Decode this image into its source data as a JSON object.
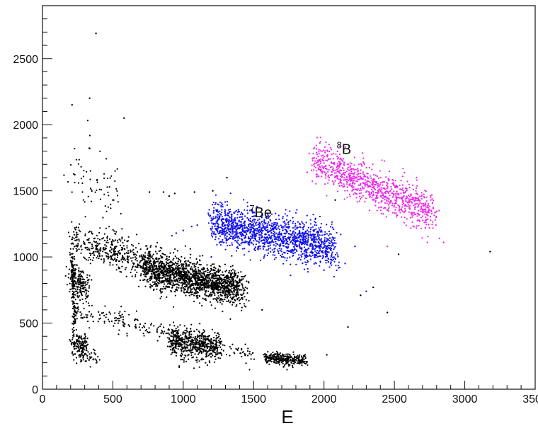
{
  "chart_data": {
    "type": "scatter",
    "title": "",
    "xlabel": "E",
    "ylabel": "",
    "xlim": [
      0,
      3500
    ],
    "ylim": [
      0,
      2900
    ],
    "x_ticks": [
      "0",
      "500",
      "1000",
      "1500",
      "2000",
      "2500",
      "3000",
      "3500"
    ],
    "y_ticks": [
      "0",
      "500",
      "1000",
      "1500",
      "2000",
      "2500"
    ],
    "x_tick_values": [
      0,
      500,
      1000,
      1500,
      2000,
      2500,
      3000,
      3500
    ],
    "y_tick_values": [
      0,
      500,
      1000,
      1500,
      2000,
      2500
    ],
    "grid": false,
    "annotations": [
      {
        "mass": "7",
        "element": "Be",
        "x": 1470,
        "y": 1300
      },
      {
        "mass": "8",
        "element": "B",
        "x": 2090,
        "y": 1780
      }
    ],
    "series": [
      {
        "color": "#000000",
        "clusters": [
          {
            "x0": 210,
            "y0": 1140,
            "x1": 1450,
            "y1": 740,
            "perp": 30,
            "n": 900
          },
          {
            "x0": 700,
            "y0": 900,
            "x1": 1400,
            "y1": 760,
            "perp": 28,
            "n": 1200
          },
          {
            "x0": 220,
            "y0": 600,
            "x1": 1500,
            "y1": 250,
            "perp": 18,
            "n": 260
          },
          {
            "x0": 900,
            "y0": 360,
            "x1": 1260,
            "y1": 320,
            "perp": 25,
            "n": 520
          },
          {
            "x0": 1580,
            "y0": 240,
            "x1": 1880,
            "y1": 215,
            "perp": 10,
            "n": 300
          },
          {
            "x0": 210,
            "y0": 350,
            "x1": 320,
            "y1": 330,
            "perp": 22,
            "n": 140
          },
          {
            "x0": 200,
            "y0": 850,
            "x1": 320,
            "y1": 760,
            "perp": 30,
            "n": 190
          },
          {
            "x0": 210,
            "y0": 1000,
            "x1": 230,
            "y1": 450,
            "perp": 10,
            "n": 120
          },
          {
            "x0": 210,
            "y0": 1640,
            "x1": 520,
            "y1": 1480,
            "perp": 60,
            "n": 70
          },
          {
            "x0": 250,
            "y0": 260,
            "x1": 400,
            "y1": 240,
            "perp": 15,
            "n": 40
          }
        ],
        "points": [
          [
            380,
            2690
          ],
          [
            335,
            2200
          ],
          [
            210,
            2150
          ],
          [
            580,
            2050
          ],
          [
            760,
            1490
          ],
          [
            860,
            1490
          ],
          [
            900,
            1460
          ],
          [
            940,
            1480
          ],
          [
            1080,
            1490
          ],
          [
            1310,
            1600
          ],
          [
            1210,
            1500
          ],
          [
            900,
            1000
          ],
          [
            500,
            1430
          ],
          [
            2020,
            260
          ],
          [
            2530,
            1020
          ],
          [
            3180,
            1040
          ],
          [
            2450,
            580
          ],
          [
            2350,
            770
          ],
          [
            2170,
            470
          ],
          [
            2080,
            1430
          ],
          [
            1560,
            600
          ],
          [
            2260,
            710
          ]
        ]
      },
      {
        "color": "#1010ee",
        "clusters": [
          {
            "x0": 1210,
            "y0": 1270,
            "x1": 2080,
            "y1": 1060,
            "perp": 35,
            "n": 1500
          }
        ],
        "points": [
          [
            1000,
            1200
          ],
          [
            1060,
            1230
          ],
          [
            920,
            1160
          ],
          [
            950,
            1180
          ],
          [
            1100,
            1240
          ],
          [
            2300,
            740
          ],
          [
            1200,
            1000
          ],
          [
            2150,
            950
          ],
          [
            2220,
            1080
          ],
          [
            1700,
            1000
          ],
          [
            2000,
            900
          ]
        ]
      },
      {
        "color": "#ee22ee",
        "clusters": [
          {
            "x0": 1930,
            "y0": 1740,
            "x1": 2780,
            "y1": 1320,
            "perp": 35,
            "n": 900
          }
        ],
        "points": [
          [
            1880,
            1640
          ],
          [
            2820,
            1140
          ],
          [
            2850,
            1110
          ],
          [
            2450,
            1080
          ],
          [
            2720,
            1220
          ],
          [
            2000,
            1710
          ]
        ]
      }
    ]
  }
}
